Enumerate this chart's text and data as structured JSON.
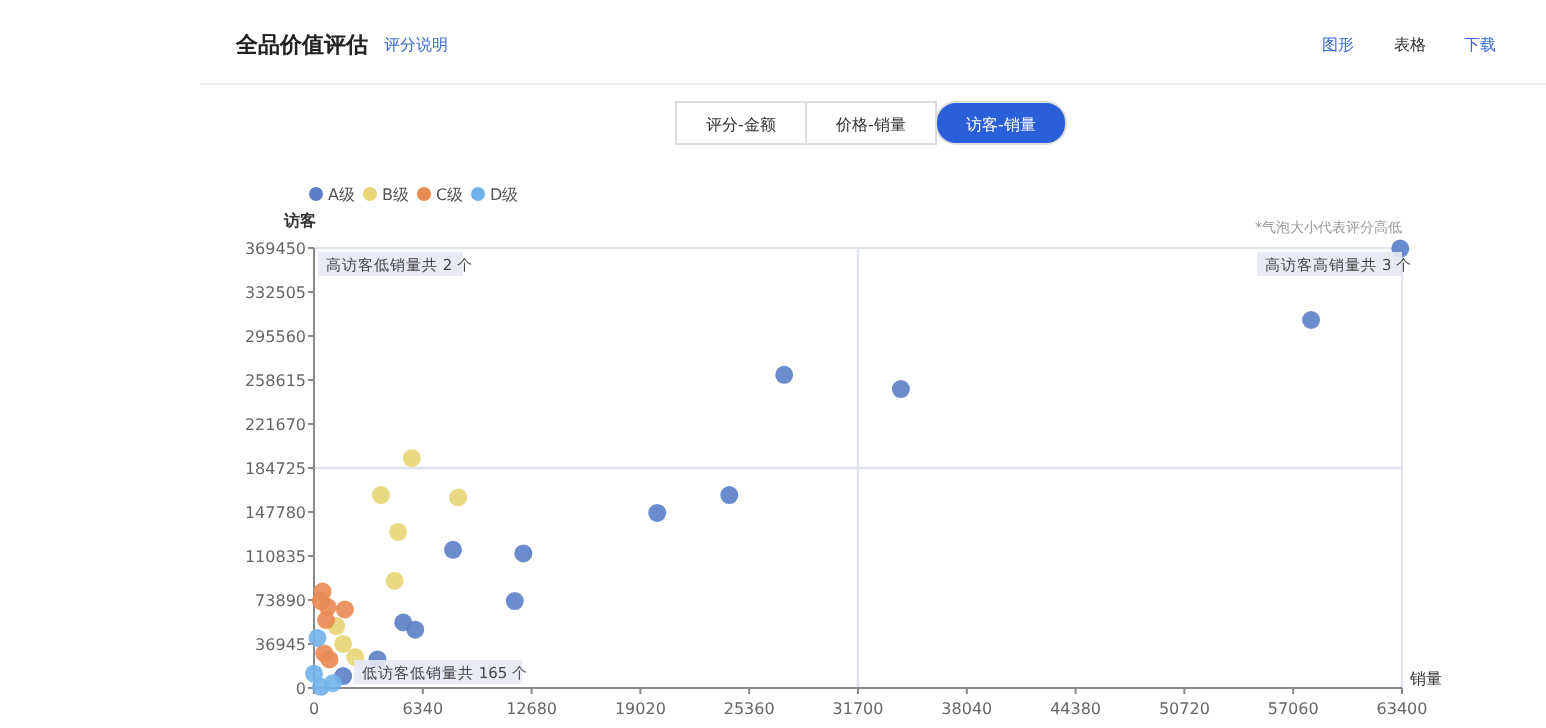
{
  "chart_data": {
    "type": "scatter",
    "title": "全品价值评估",
    "xlabel": "销量",
    "ylabel": "访客",
    "annotations": [
      "评分说明",
      "图形",
      "表格",
      "下载",
      "评分-金额",
      "价格-销量",
      "访客-销量",
      "*气泡大小代表评分高低",
      "高访客低销量共 2 个",
      "高访客高销量共 3 个",
      "低访客低销量共 165 个"
    ],
    "xlim": [
      0,
      63400
    ],
    "ylim": [
      0,
      369450
    ],
    "xticks": [
      0,
      6340,
      12680,
      19020,
      25360,
      31700,
      38040,
      44380,
      50720,
      57060,
      63400
    ],
    "yticks": [
      0,
      36945,
      73890,
      110835,
      147780,
      184725,
      221670,
      258615,
      295560,
      332505,
      369450
    ],
    "ref_lines": [
      {
        "axis": "x",
        "value": 31700,
        "color": "#dfe3ec"
      },
      {
        "axis": "y",
        "value": 184725,
        "color": "#dfe3ec"
      }
    ],
    "legend": "top left",
    "marker": "circle",
    "grid": false,
    "series": [
      {
        "name": "A级",
        "color": "#5b7fc7",
        "x": [
          27400,
          24200,
          20000,
          12200,
          8100,
          11700,
          5200,
          5900,
          3700,
          1700,
          34200,
          58100,
          63300
        ],
        "values": [
          263000,
          162000,
          147000,
          113000,
          116000,
          73000,
          55000,
          49000,
          24000,
          10000,
          251000,
          309000,
          369000
        ]
      },
      {
        "name": "B级",
        "color": "#e8d576",
        "x": [
          5700,
          3900,
          8400,
          4900,
          4700,
          1300,
          1700,
          2400,
          null
        ],
        "values": [
          193000,
          162000,
          160000,
          131000,
          90000,
          52000,
          37000,
          26000,
          null
        ]
      },
      {
        "name": "C级",
        "color": "#e88a52",
        "x": [
          500,
          400,
          800,
          1800,
          700,
          600,
          900,
          null
        ],
        "values": [
          81000,
          73000,
          68000,
          66000,
          57000,
          29000,
          24000,
          null
        ]
      },
      {
        "name": "D级",
        "color": "#72b2ea",
        "x": [
          200,
          null,
          1100,
          400,
          0
        ],
        "values": [
          42000,
          null,
          4000,
          1000,
          12000
        ]
      }
    ]
  }
}
